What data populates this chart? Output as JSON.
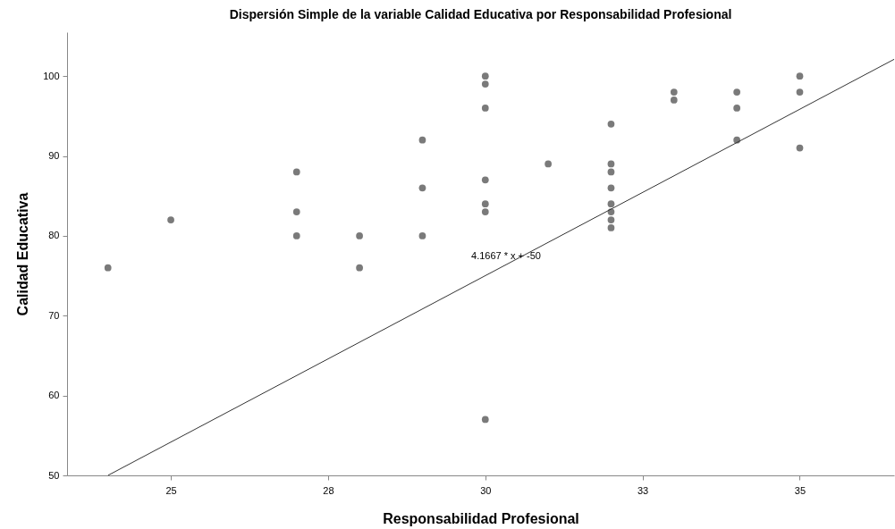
{
  "chart_data": {
    "type": "scatter",
    "title": "Dispersión Simple de la variable Calidad Educativa por Responsabilidad Profesional",
    "xlabel": "Responsabilidad Profesional",
    "ylabel": "Calidad Educativa",
    "xlim": [
      23.35,
      36.5
    ],
    "ylim": [
      50,
      105.5
    ],
    "xticks": [
      25,
      {
        "value": 27.5,
        "label": "28"
      },
      30,
      {
        "value": 32.5,
        "label": "33"
      },
      35
    ],
    "yticks": [
      50,
      60,
      70,
      80,
      90,
      100
    ],
    "grid": false,
    "series": [
      {
        "color": "#7a7a7a",
        "marker": "circle",
        "x": [
          24,
          25,
          27,
          27,
          27,
          28,
          28,
          29,
          29,
          29,
          30,
          30,
          30,
          30,
          30,
          30,
          30,
          31,
          32,
          32,
          32,
          32,
          32,
          32,
          32,
          32,
          33,
          33,
          34,
          34,
          34,
          35,
          35,
          35
        ],
        "values": [
          76,
          82,
          88,
          83,
          80,
          80,
          76,
          92,
          86,
          80,
          100,
          99,
          96,
          87,
          84,
          83,
          57,
          89,
          94,
          89,
          88,
          86,
          84,
          83,
          82,
          81,
          98,
          97,
          98,
          96,
          92,
          100,
          98,
          91
        ]
      },
      {
        "type": "line",
        "color": "#333333",
        "x": [
          24,
          36.5
        ],
        "values": [
          50,
          102.1
        ]
      }
    ],
    "annotations": [
      "4.1667 * x + -50"
    ]
  }
}
